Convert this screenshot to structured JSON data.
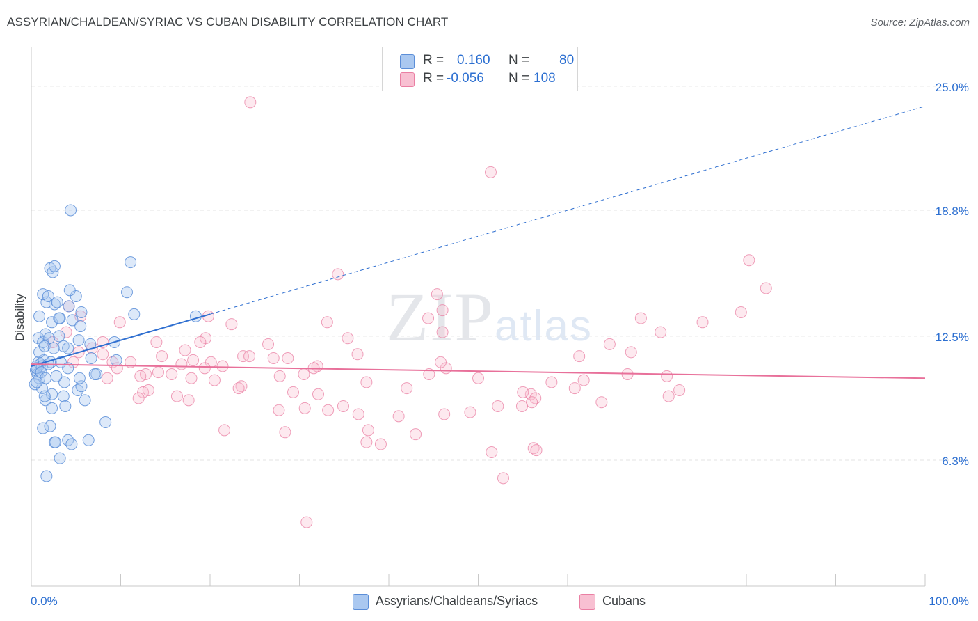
{
  "title": "ASSYRIAN/CHALDEAN/SYRIAC VS CUBAN DISABILITY CORRELATION CHART",
  "source": "Source: ZipAtlas.com",
  "watermark": {
    "zip": "ZIP",
    "atlas": "atlas"
  },
  "legend": {
    "rows": [
      {
        "r_label": "R =",
        "r_value": "0.160",
        "n_label": "N =",
        "n_value": "80",
        "color": "#aac8f0",
        "stroke": "#5b8ed8"
      },
      {
        "r_label": "R =",
        "r_value": "-0.056",
        "n_label": "N =",
        "n_value": "108",
        "color": "#f8c0d2",
        "stroke": "#ea7fa3"
      }
    ]
  },
  "bottom_legend": [
    {
      "label": "Assyrians/Chaldeans/Syriacs",
      "color": "#aac8f0",
      "stroke": "#5b8ed8"
    },
    {
      "label": "Cubans",
      "color": "#f8c0d2",
      "stroke": "#ea7fa3"
    }
  ],
  "chart_data": {
    "type": "scatter",
    "title": "ASSYRIAN/CHALDEAN/SYRIAC VS CUBAN DISABILITY CORRELATION CHART",
    "xlabel": "",
    "ylabel": "Disability",
    "xlim": [
      0,
      100
    ],
    "ylim": [
      0,
      26.7
    ],
    "x_tick_labels": [
      "0.0%",
      "100.0%"
    ],
    "y_ticks": [
      6.3,
      12.5,
      18.8,
      25.0
    ],
    "y_tick_labels": [
      "6.3%",
      "12.5%",
      "18.8%",
      "25.0%"
    ],
    "grid": true,
    "colors": {
      "blue_stroke": "#5b8ed8",
      "blue_fill": "#aac8f0",
      "pink_stroke": "#ea7fa3",
      "pink_fill": "#f8c0d2",
      "blue_line": "#2f6fd0",
      "pink_line": "#e8709a",
      "tick_label": "#2c6fd1"
    },
    "series": [
      {
        "name": "Assyrians/Chaldeans/Syriacs",
        "trend": {
          "x0": 0,
          "y0": 11.0,
          "x1": 100,
          "y1": 24.0,
          "solid_until": 20
        },
        "points": [
          [
            0.6,
            11.0
          ],
          [
            0.8,
            11.2
          ],
          [
            0.5,
            10.8
          ],
          [
            1.0,
            11.1
          ],
          [
            0.7,
            10.6
          ],
          [
            1.2,
            11.0
          ],
          [
            0.9,
            10.4
          ],
          [
            1.4,
            11.3
          ],
          [
            0.6,
            10.9
          ],
          [
            1.1,
            10.7
          ],
          [
            0.8,
            12.4
          ],
          [
            1.3,
            12.2
          ],
          [
            1.6,
            12.6
          ],
          [
            2.0,
            12.4
          ],
          [
            2.3,
            13.2
          ],
          [
            0.9,
            13.5
          ],
          [
            1.7,
            14.2
          ],
          [
            2.1,
            15.9
          ],
          [
            2.4,
            15.7
          ],
          [
            2.6,
            16.0
          ],
          [
            1.3,
            14.6
          ],
          [
            1.9,
            14.5
          ],
          [
            2.6,
            14.1
          ],
          [
            2.9,
            14.2
          ],
          [
            3.2,
            13.4
          ],
          [
            4.2,
            14.0
          ],
          [
            5.0,
            14.5
          ],
          [
            4.6,
            13.3
          ],
          [
            5.6,
            13.7
          ],
          [
            4.3,
            14.8
          ],
          [
            5.3,
            12.3
          ],
          [
            3.6,
            12.0
          ],
          [
            4.1,
            11.9
          ],
          [
            3.1,
            12.5
          ],
          [
            1.6,
            10.4
          ],
          [
            2.2,
            11.2
          ],
          [
            3.3,
            11.2
          ],
          [
            4.1,
            10.9
          ],
          [
            1.2,
            9.9
          ],
          [
            1.6,
            9.3
          ],
          [
            2.3,
            8.9
          ],
          [
            3.6,
            9.5
          ],
          [
            3.8,
            9.0
          ],
          [
            5.2,
            9.8
          ],
          [
            5.6,
            10.0
          ],
          [
            6.0,
            9.3
          ],
          [
            5.4,
            10.4
          ],
          [
            7.3,
            10.6
          ],
          [
            7.1,
            10.6
          ],
          [
            1.3,
            7.9
          ],
          [
            2.1,
            8.0
          ],
          [
            2.6,
            7.2
          ],
          [
            2.7,
            7.2
          ],
          [
            4.1,
            7.3
          ],
          [
            4.5,
            7.1
          ],
          [
            6.4,
            7.3
          ],
          [
            3.2,
            6.4
          ],
          [
            1.7,
            5.5
          ],
          [
            4.4,
            18.8
          ],
          [
            11.1,
            16.2
          ],
          [
            10.7,
            14.7
          ],
          [
            11.5,
            13.6
          ],
          [
            18.4,
            13.5
          ],
          [
            9.3,
            12.2
          ],
          [
            6.6,
            12.1
          ],
          [
            3.1,
            13.4
          ],
          [
            8.3,
            8.2
          ],
          [
            9.5,
            11.3
          ],
          [
            5.5,
            13.0
          ],
          [
            1.9,
            11.1
          ],
          [
            0.4,
            10.1
          ],
          [
            0.6,
            10.2
          ],
          [
            2.3,
            9.6
          ],
          [
            3.7,
            10.2
          ],
          [
            1.5,
            9.5
          ],
          [
            2.8,
            10.5
          ],
          [
            0.9,
            11.7
          ],
          [
            1.5,
            12.0
          ],
          [
            2.5,
            11.9
          ],
          [
            6.7,
            11.4
          ]
        ]
      },
      {
        "name": "Cubans",
        "trend": {
          "x0": 0,
          "y0": 11.1,
          "x1": 100,
          "y1": 10.4
        },
        "points": [
          [
            24.5,
            24.2
          ],
          [
            51.4,
            20.7
          ],
          [
            80.3,
            16.3
          ],
          [
            34.3,
            15.6
          ],
          [
            82.2,
            14.9
          ],
          [
            45.4,
            14.6
          ],
          [
            46.0,
            13.8
          ],
          [
            79.4,
            13.7
          ],
          [
            68.2,
            13.4
          ],
          [
            44.4,
            13.4
          ],
          [
            75.1,
            13.2
          ],
          [
            33.1,
            13.2
          ],
          [
            22.4,
            13.1
          ],
          [
            9.9,
            13.2
          ],
          [
            19.8,
            13.5
          ],
          [
            4.2,
            14.0
          ],
          [
            5.5,
            13.5
          ],
          [
            70.4,
            12.7
          ],
          [
            46.0,
            12.7
          ],
          [
            19.5,
            12.4
          ],
          [
            14.0,
            12.2
          ],
          [
            26.5,
            12.1
          ],
          [
            64.7,
            12.1
          ],
          [
            17.2,
            11.8
          ],
          [
            6.8,
            11.9
          ],
          [
            67.1,
            11.7
          ],
          [
            36.5,
            11.6
          ],
          [
            61.3,
            11.5
          ],
          [
            14.6,
            11.5
          ],
          [
            8.0,
            11.6
          ],
          [
            23.7,
            11.5
          ],
          [
            27.1,
            11.4
          ],
          [
            28.7,
            11.4
          ],
          [
            18.1,
            11.3
          ],
          [
            16.8,
            11.1
          ],
          [
            4.7,
            11.2
          ],
          [
            9.1,
            11.2
          ],
          [
            11.1,
            11.2
          ],
          [
            20.1,
            11.2
          ],
          [
            21.4,
            11.0
          ],
          [
            32.0,
            11.0
          ],
          [
            19.4,
            10.9
          ],
          [
            31.6,
            10.9
          ],
          [
            46.4,
            10.9
          ],
          [
            15.7,
            10.6
          ],
          [
            27.8,
            10.5
          ],
          [
            17.9,
            10.4
          ],
          [
            8.5,
            10.4
          ],
          [
            23.5,
            10.0
          ],
          [
            12.8,
            10.6
          ],
          [
            20.5,
            10.3
          ],
          [
            30.5,
            10.6
          ],
          [
            14.2,
            10.7
          ],
          [
            12.2,
            10.5
          ],
          [
            44.5,
            10.6
          ],
          [
            37.5,
            10.2
          ],
          [
            66.7,
            10.6
          ],
          [
            61.8,
            10.3
          ],
          [
            58.2,
            10.2
          ],
          [
            71.1,
            10.5
          ],
          [
            23.2,
            9.9
          ],
          [
            12.5,
            9.7
          ],
          [
            13.1,
            9.8
          ],
          [
            32.1,
            9.6
          ],
          [
            42.0,
            9.9
          ],
          [
            16.3,
            9.5
          ],
          [
            50.0,
            10.4
          ],
          [
            55.9,
            9.6
          ],
          [
            56.4,
            9.4
          ],
          [
            71.3,
            9.5
          ],
          [
            72.5,
            9.8
          ],
          [
            63.8,
            9.2
          ],
          [
            56.0,
            9.2
          ],
          [
            52.2,
            9.0
          ],
          [
            54.9,
            9.0
          ],
          [
            12.0,
            9.4
          ],
          [
            17.6,
            9.3
          ],
          [
            34.9,
            9.0
          ],
          [
            30.6,
            8.9
          ],
          [
            33.2,
            8.8
          ],
          [
            41.1,
            8.5
          ],
          [
            46.2,
            8.6
          ],
          [
            36.6,
            8.6
          ],
          [
            49.1,
            8.7
          ],
          [
            43.0,
            7.6
          ],
          [
            27.7,
            8.8
          ],
          [
            37.7,
            7.8
          ],
          [
            28.4,
            7.7
          ],
          [
            39.1,
            7.1
          ],
          [
            37.5,
            7.2
          ],
          [
            56.2,
            6.9
          ],
          [
            56.5,
            6.8
          ],
          [
            52.8,
            5.4
          ],
          [
            30.8,
            3.2
          ],
          [
            51.5,
            6.7
          ],
          [
            55.0,
            9.7
          ],
          [
            21.6,
            7.8
          ],
          [
            24.4,
            11.5
          ],
          [
            29.3,
            9.7
          ],
          [
            18.9,
            12.2
          ],
          [
            35.4,
            12.4
          ],
          [
            8.0,
            12.2
          ],
          [
            5.3,
            11.7
          ],
          [
            3.9,
            12.7
          ],
          [
            45.8,
            11.2
          ],
          [
            9.6,
            10.9
          ],
          [
            2.4,
            12.2
          ],
          [
            60.8,
            9.9
          ]
        ]
      }
    ]
  }
}
